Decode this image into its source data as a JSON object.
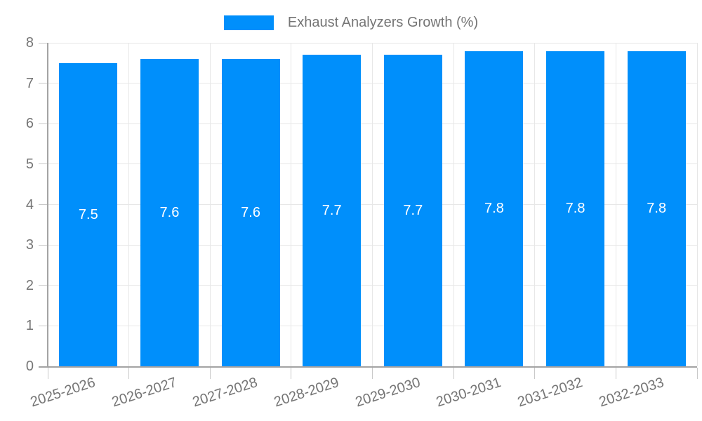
{
  "chart_data": {
    "type": "bar",
    "title": "Exhaust Analyzers Growth (%)",
    "legend": {
      "position": "top",
      "label": "Exhaust Analyzers Growth (%)"
    },
    "categories": [
      "2025-2026",
      "2026-2027",
      "2027-2028",
      "2028-2029",
      "2029-2030",
      "2030-2031",
      "2031-2032",
      "2032-2033"
    ],
    "series": [
      {
        "name": "Exhaust Analyzers Growth (%)",
        "values": [
          7.5,
          7.6,
          7.6,
          7.7,
          7.7,
          7.8,
          7.8,
          7.8
        ]
      }
    ],
    "data_labels": [
      "7.5",
      "7.6",
      "7.6",
      "7.7",
      "7.7",
      "7.8",
      "7.8",
      "7.8"
    ],
    "xlabel": "",
    "ylabel": "",
    "ylim": [
      0,
      8
    ],
    "ytick_step": 1,
    "yticks": [
      "0",
      "1",
      "2",
      "3",
      "4",
      "5",
      "6",
      "7",
      "8"
    ],
    "grid": true,
    "x_label_rotation_deg": -18
  },
  "colors": {
    "bar": "#008FFB",
    "axis_text": "#757575",
    "data_label_text": "#ffffff",
    "gridline": "#e7e7e7",
    "tick": "#c9c9c9",
    "axis_line": "#a3a3a3",
    "background": "#ffffff"
  }
}
